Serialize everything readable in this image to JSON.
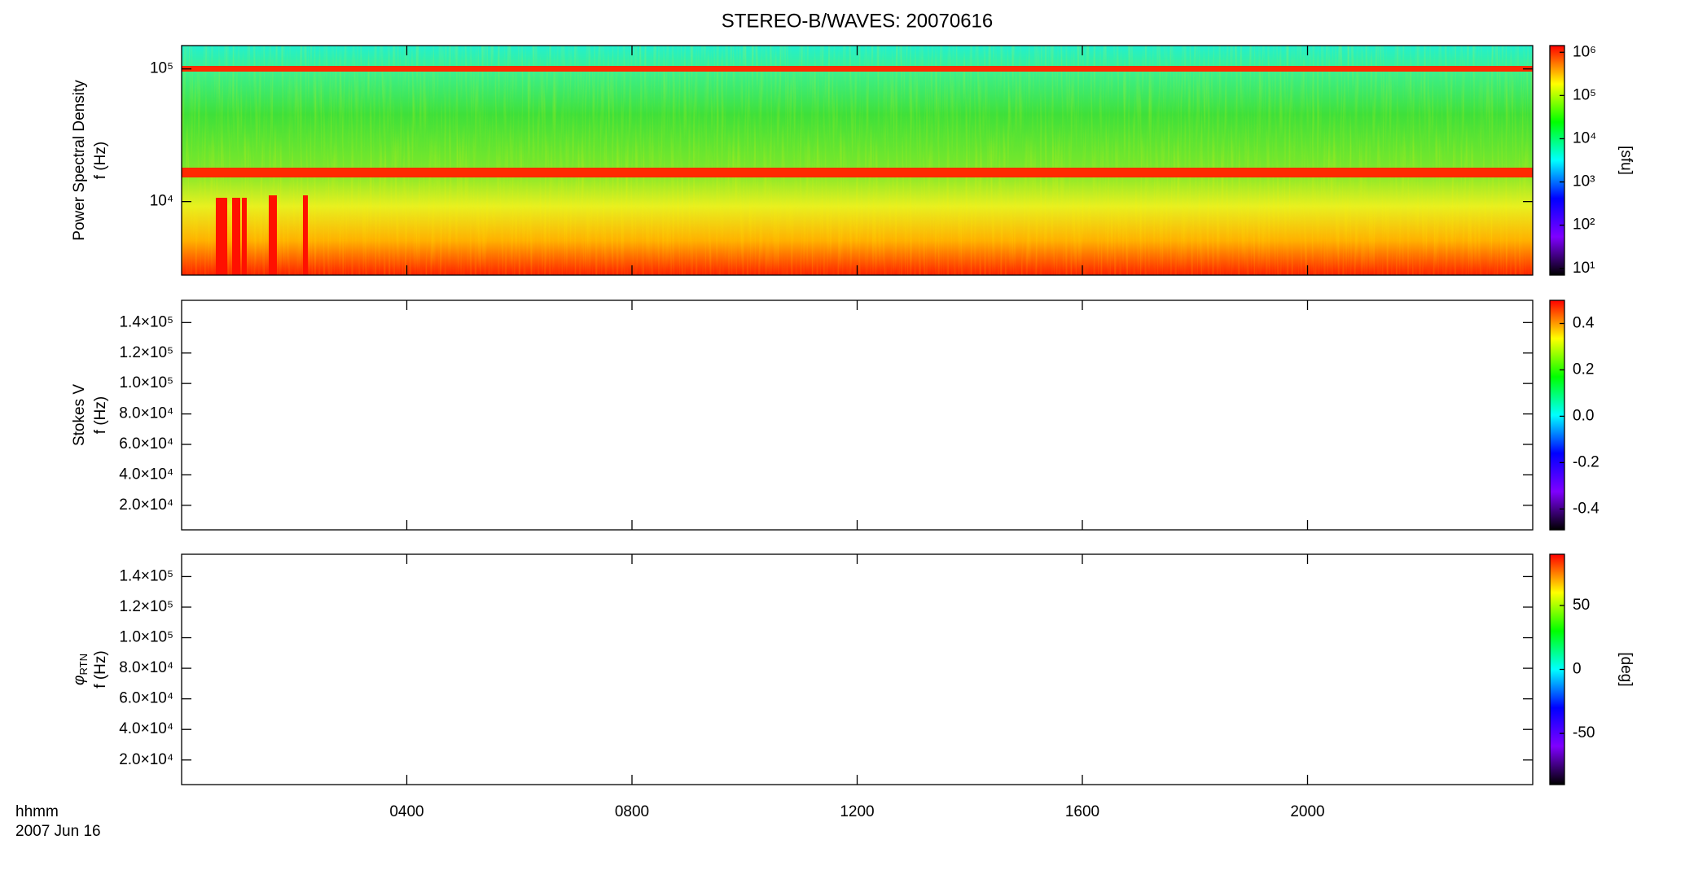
{
  "chart_data": [
    {
      "type": "spectrogram",
      "title": "STEREO-B/WAVES: 20070616",
      "ylabel": [
        "Power Spectral Density",
        "f (Hz)"
      ],
      "ylog": true,
      "ylim": [
        2790,
        150000
      ],
      "yticks": [
        {
          "value": 10000,
          "label": "10⁴"
        },
        {
          "value": 100000,
          "label": "10⁵"
        }
      ],
      "colorbar": {
        "log": true,
        "lim": [
          7,
          1430000
        ],
        "label": "[sfu]",
        "ticks": [
          {
            "value": 10,
            "label": "10¹"
          },
          {
            "value": 100,
            "label": "10²"
          },
          {
            "value": 1000,
            "label": "10³"
          },
          {
            "value": 10000,
            "label": "10⁴"
          },
          {
            "value": 100000,
            "label": "10⁵"
          },
          {
            "value": 1000000,
            "label": "10⁶"
          }
        ]
      },
      "colormap": [
        "#000000",
        "#7f00ff",
        "#0000ff",
        "#00ffff",
        "#00ff00",
        "#ffff00",
        "#ff0000"
      ]
    },
    {
      "type": "spectrogram",
      "ylabel": [
        "Stokes V",
        "f (Hz)"
      ],
      "ylog": false,
      "ylim": [
        3900,
        154600
      ],
      "yticks": [
        {
          "value": 20000,
          "label": "2.0×10⁴"
        },
        {
          "value": 40000,
          "label": "4.0×10⁴"
        },
        {
          "value": 60000,
          "label": "6.0×10⁴"
        },
        {
          "value": 80000,
          "label": "8.0×10⁴"
        },
        {
          "value": 100000,
          "label": "1.0×10⁵"
        },
        {
          "value": 120000,
          "label": "1.2×10⁵"
        },
        {
          "value": 140000,
          "label": "1.4×10⁵"
        }
      ],
      "colorbar": {
        "log": false,
        "lim": [
          -0.49,
          0.5
        ],
        "ticks": [
          -0.4,
          -0.2,
          {
            "value": 0,
            "label": "0.0"
          },
          0.2,
          0.4
        ]
      },
      "colormap": [
        "#000000",
        "#7f00ff",
        "#0000ff",
        "#00ffff",
        "#00ff00",
        "#ffff00",
        "#ff0000"
      ]
    },
    {
      "type": "spectrogram",
      "ylabel": [
        {
          "text": "φ",
          "sub": "RTN"
        },
        "f (Hz)"
      ],
      "ylog": false,
      "ylim": [
        3900,
        154600
      ],
      "yticks": [
        {
          "value": 20000,
          "label": "2.0×10⁴"
        },
        {
          "value": 40000,
          "label": "4.0×10⁴"
        },
        {
          "value": 60000,
          "label": "6.0×10⁴"
        },
        {
          "value": 80000,
          "label": "8.0×10⁴"
        },
        {
          "value": 100000,
          "label": "1.0×10⁵"
        },
        {
          "value": 120000,
          "label": "1.2×10⁵"
        },
        {
          "value": 140000,
          "label": "1.4×10⁵"
        }
      ],
      "colorbar": {
        "log": false,
        "lim": [
          -90,
          90
        ],
        "label": "[deg]",
        "ticks": [
          -50,
          0,
          50
        ]
      },
      "colormap": [
        "#000000",
        "#7f00ff",
        "#0000ff",
        "#00ffff",
        "#00ff00",
        "#ffff00",
        "#ff0000"
      ],
      "xlim": [
        0,
        24
      ],
      "xticks": [
        {
          "value": 4,
          "label": "0400"
        },
        {
          "value": 8,
          "label": "0800"
        },
        {
          "value": 12,
          "label": "1200"
        },
        {
          "value": 16,
          "label": "1600"
        },
        {
          "value": 20,
          "label": "2000"
        }
      ],
      "xlabel": [
        "hhmm",
        "2007 Jun 16"
      ]
    }
  ]
}
